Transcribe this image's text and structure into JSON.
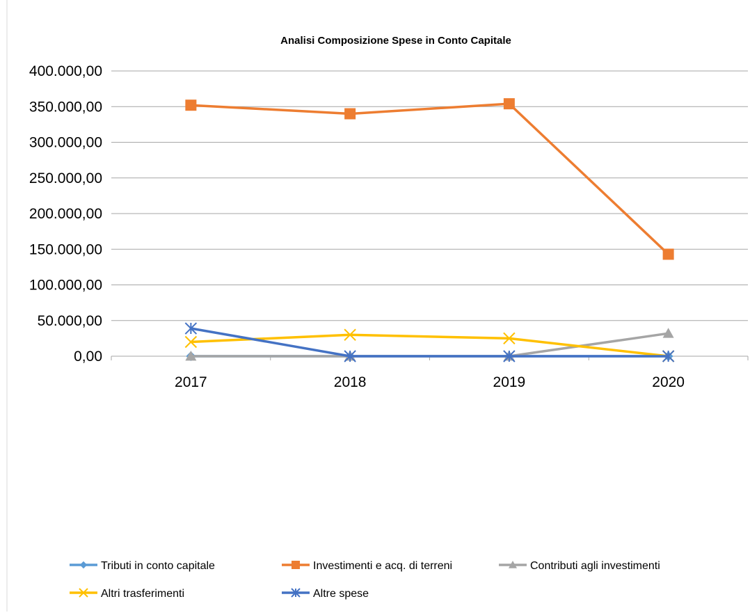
{
  "chart_data": {
    "type": "line",
    "title": "Analisi Composizione Spese in Conto Capitale",
    "xlabel": "",
    "ylabel": "",
    "categories": [
      "2017",
      "2018",
      "2019",
      "2020"
    ],
    "ylim": [
      0,
      400000
    ],
    "yticks": [
      0,
      50000,
      100000,
      150000,
      200000,
      250000,
      300000,
      350000,
      400000
    ],
    "ytick_labels": [
      "0,00",
      "50.000,00",
      "100.000,00",
      "150.000,00",
      "200.000,00",
      "250.000,00",
      "300.000,00",
      "350.000,00",
      "400.000,00"
    ],
    "grid": "horizontal",
    "legend_position": "bottom",
    "series": [
      {
        "name": "Tributi in conto capitale",
        "values": [
          0,
          0,
          0,
          0
        ],
        "color": "#5B9BD5",
        "marker": "diamond"
      },
      {
        "name": "Investimenti e acq. di terreni",
        "values": [
          352000,
          340000,
          354000,
          143000
        ],
        "color": "#ED7D31",
        "marker": "square"
      },
      {
        "name": "Contributi agli investimenti",
        "values": [
          0,
          0,
          0,
          32000
        ],
        "color": "#A5A5A5",
        "marker": "triangle"
      },
      {
        "name": "Altri trasferimenti",
        "values": [
          20000,
          30000,
          25000,
          0
        ],
        "color": "#FFC000",
        "marker": "x"
      },
      {
        "name": "Altre spese",
        "values": [
          39000,
          0,
          0,
          0
        ],
        "color": "#4472C4",
        "marker": "star"
      }
    ]
  }
}
